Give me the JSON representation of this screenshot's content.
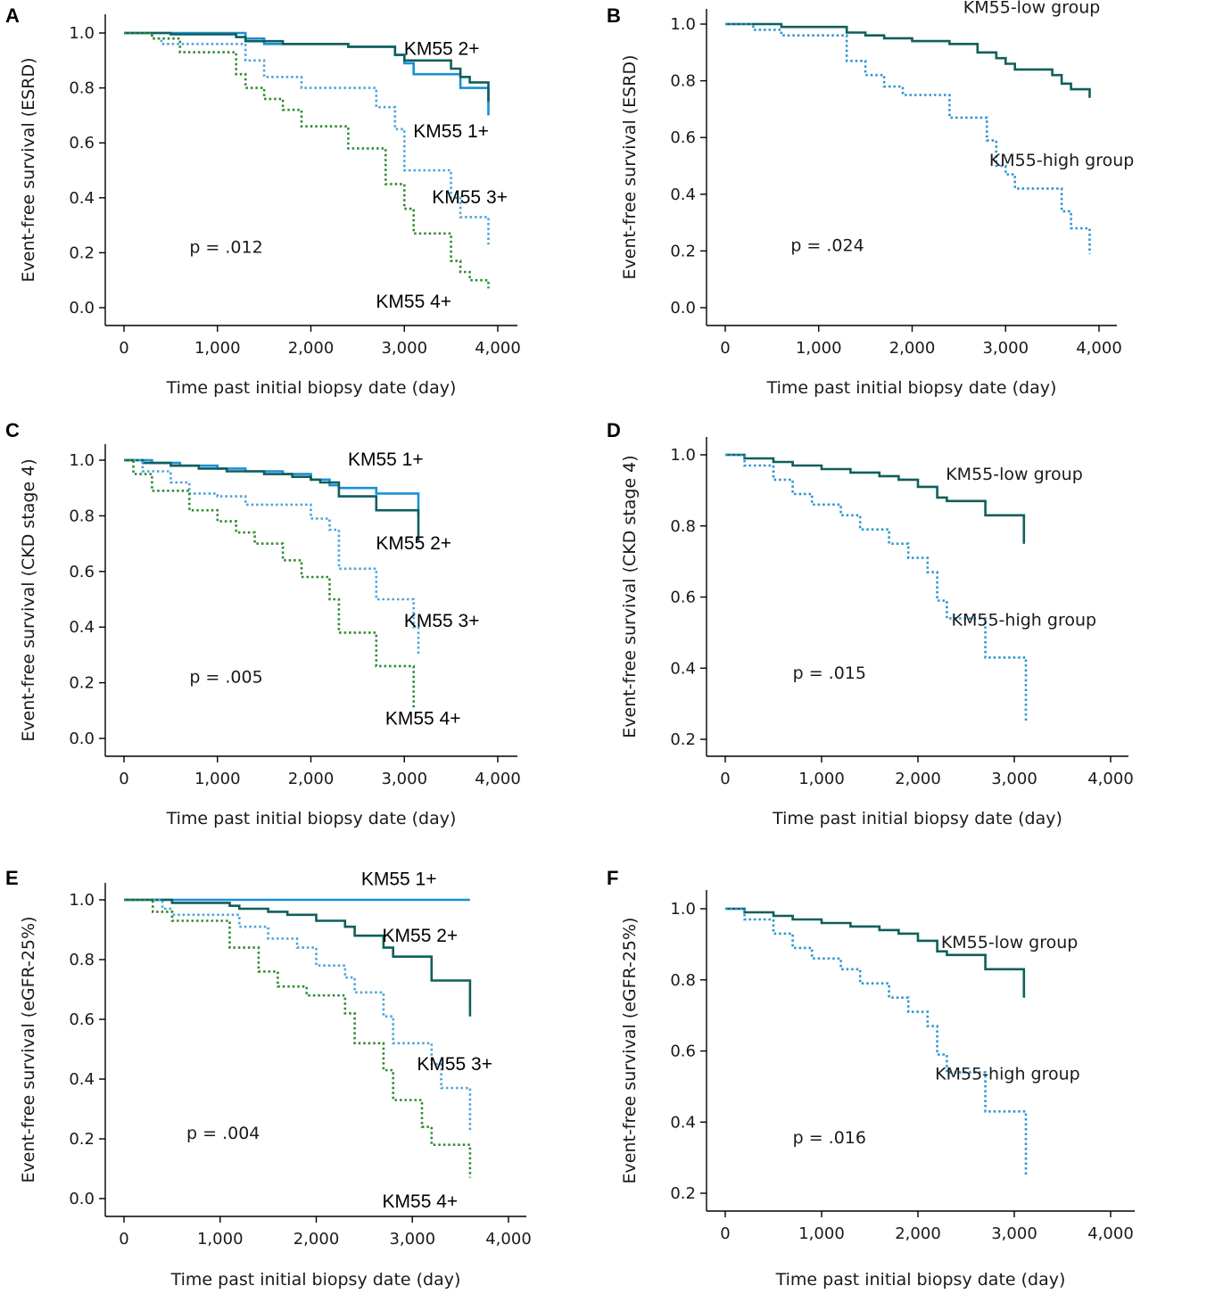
{
  "colors": {
    "KM55 1+": "#1a8fd6",
    "KM55 2+": "#0f5f5c",
    "KM55 3+": "#4aa3dc",
    "KM55 4+": "#2e8b2e",
    "KM55-low group": "#0f5f5c",
    "KM55-high group": "#2a96d2"
  },
  "chart_data": [
    {
      "panel": "A",
      "type": "line",
      "xlabel": "Time past initial biopsy date (day)",
      "ylabel": "Event-free survival (ESRD)",
      "xlim": [
        0,
        4000
      ],
      "ylim": [
        0,
        1.0
      ],
      "xticks": [
        0,
        1000,
        2000,
        3000,
        4000
      ],
      "xtick_labels": [
        "0",
        "1,000",
        "2,000",
        "3,000",
        "4,000"
      ],
      "yticks": [
        0,
        0.2,
        0.4,
        0.6,
        0.8,
        1.0
      ],
      "ytick_labels": [
        "0.0",
        "0.2",
        "0.4",
        "0.6",
        "0.8",
        "1.0"
      ],
      "annotation": "p = .012",
      "series": [
        {
          "name": "KM55 1+",
          "label": "KM55 1+",
          "dashed": false,
          "x": [
            0,
            1200,
            1300,
            1500,
            2400,
            2900,
            3000,
            3100,
            3400,
            3600,
            3700,
            3900,
            3900
          ],
          "y": [
            1.0,
            1.0,
            0.98,
            0.96,
            0.95,
            0.92,
            0.89,
            0.85,
            0.85,
            0.8,
            0.8,
            0.8,
            0.7
          ]
        },
        {
          "name": "KM55 2+",
          "label": "KM55 2+",
          "dashed": false,
          "x": [
            0,
            500,
            1200,
            1300,
            1700,
            2400,
            2900,
            3000,
            3500,
            3600,
            3700,
            3900,
            3900
          ],
          "y": [
            1.0,
            0.995,
            0.985,
            0.97,
            0.96,
            0.95,
            0.92,
            0.9,
            0.87,
            0.84,
            0.82,
            0.82,
            0.75
          ]
        },
        {
          "name": "KM55 3+",
          "label": "KM55 3+",
          "dashed": true,
          "x": [
            0,
            300,
            400,
            1200,
            1300,
            1500,
            1900,
            2400,
            2700,
            2900,
            3000,
            3300,
            3500,
            3600,
            3700,
            3900,
            3900
          ],
          "y": [
            1.0,
            0.98,
            0.96,
            0.96,
            0.9,
            0.84,
            0.8,
            0.8,
            0.73,
            0.65,
            0.5,
            0.5,
            0.4,
            0.33,
            0.33,
            0.33,
            0.23
          ]
        },
        {
          "name": "KM55 4+",
          "label": "KM55 4+",
          "dashed": true,
          "x": [
            0,
            300,
            600,
            1200,
            1300,
            1500,
            1700,
            1900,
            2400,
            2800,
            3000,
            3100,
            3500,
            3600,
            3700,
            3900,
            3900
          ],
          "y": [
            1.0,
            0.98,
            0.93,
            0.85,
            0.8,
            0.76,
            0.72,
            0.66,
            0.58,
            0.45,
            0.36,
            0.27,
            0.17,
            0.13,
            0.1,
            0.1,
            0.07
          ]
        }
      ],
      "labels": [
        {
          "series": "KM55 2+",
          "at": [
            3400,
            0.92
          ]
        },
        {
          "series": "KM55 1+",
          "at": [
            3500,
            0.62
          ]
        },
        {
          "series": "KM55 3+",
          "at": [
            3700,
            0.38
          ]
        },
        {
          "series": "KM55 4+",
          "at": [
            3100,
            0.0
          ]
        }
      ],
      "p_at": [
        700,
        0.2
      ]
    },
    {
      "panel": "B",
      "type": "line",
      "xlabel": "Time past initial biopsy date (day)",
      "ylabel": "Event-free survival (ESRD)",
      "xlim": [
        0,
        4000
      ],
      "ylim": [
        0,
        1.0
      ],
      "xticks": [
        0,
        1000,
        2000,
        3000,
        4000
      ],
      "xtick_labels": [
        "0",
        "1,000",
        "2,000",
        "3,000",
        "4,000"
      ],
      "yticks": [
        0,
        0.2,
        0.4,
        0.6,
        0.8,
        1.0
      ],
      "ytick_labels": [
        "0.0",
        "0.2",
        "0.4",
        "0.6",
        "0.8",
        "1.0"
      ],
      "annotation": "p = .024",
      "series": [
        {
          "name": "KM55-low group",
          "label": "KM55-low group",
          "dashed": false,
          "x": [
            0,
            600,
            1200,
            1300,
            1500,
            1700,
            2000,
            2400,
            2700,
            2900,
            3000,
            3100,
            3300,
            3500,
            3600,
            3700,
            3900,
            3900
          ],
          "y": [
            1.0,
            0.99,
            0.99,
            0.97,
            0.96,
            0.95,
            0.94,
            0.93,
            0.9,
            0.88,
            0.86,
            0.84,
            0.84,
            0.82,
            0.79,
            0.77,
            0.77,
            0.74
          ]
        },
        {
          "name": "KM55-high group",
          "label": "KM55-high group",
          "dashed": true,
          "x": [
            0,
            300,
            600,
            1200,
            1300,
            1500,
            1700,
            1900,
            2400,
            2800,
            2900,
            3000,
            3100,
            3500,
            3600,
            3700,
            3900,
            3900
          ],
          "y": [
            1.0,
            0.98,
            0.96,
            0.96,
            0.87,
            0.82,
            0.78,
            0.75,
            0.67,
            0.59,
            0.5,
            0.47,
            0.42,
            0.42,
            0.34,
            0.28,
            0.28,
            0.19
          ]
        }
      ],
      "labels": [
        {
          "series": "KM55-low group",
          "at": [
            3280,
            1.04
          ]
        },
        {
          "series": "KM55-high group",
          "at": [
            3600,
            0.5
          ]
        }
      ],
      "p_at": [
        700,
        0.2
      ]
    },
    {
      "panel": "C",
      "type": "line",
      "xlabel": "Time past initial biopsy date (day)",
      "ylabel": "Event-free survival (CKD stage 4)",
      "xlim": [
        0,
        4000
      ],
      "ylim": [
        0,
        1.0
      ],
      "xticks": [
        0,
        1000,
        2000,
        3000,
        4000
      ],
      "xtick_labels": [
        "0",
        "1,000",
        "2,000",
        "3,000",
        "4,000"
      ],
      "yticks": [
        0,
        0.2,
        0.4,
        0.6,
        0.8,
        1.0
      ],
      "ytick_labels": [
        "0.0",
        "0.2",
        "0.4",
        "0.6",
        "0.8",
        "1.0"
      ],
      "annotation": "p = .005",
      "series": [
        {
          "name": "KM55 1+",
          "label": "KM55 1+",
          "dashed": false,
          "x": [
            0,
            300,
            600,
            1000,
            1300,
            1700,
            2000,
            2200,
            2300,
            2700,
            3100,
            3150,
            3150
          ],
          "y": [
            1.0,
            0.99,
            0.98,
            0.97,
            0.96,
            0.95,
            0.93,
            0.91,
            0.9,
            0.88,
            0.88,
            0.88,
            0.8
          ]
        },
        {
          "name": "KM55 2+",
          "label": "KM55 2+",
          "dashed": false,
          "x": [
            0,
            200,
            500,
            800,
            1100,
            1500,
            1800,
            2000,
            2100,
            2300,
            2700,
            3100,
            3150,
            3150
          ],
          "y": [
            1.0,
            0.99,
            0.98,
            0.97,
            0.96,
            0.95,
            0.94,
            0.93,
            0.92,
            0.87,
            0.82,
            0.82,
            0.82,
            0.71
          ]
        },
        {
          "name": "KM55 3+",
          "label": "KM55 3+",
          "dashed": true,
          "x": [
            0,
            200,
            500,
            700,
            1000,
            1300,
            2000,
            2200,
            2300,
            2700,
            3000,
            3100,
            3150,
            3150
          ],
          "y": [
            1.0,
            0.96,
            0.92,
            0.88,
            0.87,
            0.84,
            0.79,
            0.75,
            0.61,
            0.5,
            0.5,
            0.4,
            0.32,
            0.3
          ]
        },
        {
          "name": "KM55 4+",
          "label": "KM55 4+",
          "dashed": true,
          "x": [
            0,
            100,
            300,
            700,
            1000,
            1200,
            1400,
            1700,
            1900,
            2200,
            2300,
            2700,
            3000,
            3100,
            3100
          ],
          "y": [
            1.0,
            0.95,
            0.89,
            0.82,
            0.78,
            0.74,
            0.7,
            0.64,
            0.58,
            0.5,
            0.38,
            0.26,
            0.26,
            0.2,
            0.11
          ]
        }
      ],
      "labels": [
        {
          "series": "KM55 1+",
          "at": [
            2800,
            0.98
          ]
        },
        {
          "series": "KM55 2+",
          "at": [
            3100,
            0.68
          ]
        },
        {
          "series": "KM55 3+",
          "at": [
            3400,
            0.4
          ]
        },
        {
          "series": "KM55 4+",
          "at": [
            3200,
            0.05
          ]
        }
      ],
      "p_at": [
        700,
        0.2
      ]
    },
    {
      "panel": "D",
      "type": "line",
      "xlabel": "Time past initial biopsy date (day)",
      "ylabel": "Event-free survival (CKD stage 4)",
      "xlim": [
        0,
        4000
      ],
      "ylim": [
        0.2,
        1.0
      ],
      "xticks": [
        0,
        1000,
        2000,
        3000,
        4000
      ],
      "xtick_labels": [
        "0",
        "1,000",
        "2,000",
        "3,000",
        "4,000"
      ],
      "yticks": [
        0.2,
        0.4,
        0.6,
        0.8,
        1.0
      ],
      "ytick_labels": [
        "0.2",
        "0.4",
        "0.6",
        "0.8",
        "1.0"
      ],
      "annotation": "p = .015",
      "series": [
        {
          "name": "KM55-low group",
          "label": "KM55-low group",
          "dashed": false,
          "x": [
            0,
            200,
            500,
            700,
            1000,
            1300,
            1600,
            1800,
            2000,
            2200,
            2300,
            2700,
            3100,
            3100
          ],
          "y": [
            1.0,
            0.99,
            0.98,
            0.97,
            0.96,
            0.95,
            0.94,
            0.93,
            0.91,
            0.88,
            0.87,
            0.83,
            0.8,
            0.75
          ]
        },
        {
          "name": "KM55-high group",
          "label": "KM55-high group",
          "dashed": true,
          "x": [
            0,
            200,
            500,
            700,
            900,
            1200,
            1400,
            1700,
            1900,
            2100,
            2200,
            2300,
            2700,
            3100,
            3120,
            3120
          ],
          "y": [
            1.0,
            0.97,
            0.93,
            0.89,
            0.86,
            0.83,
            0.79,
            0.75,
            0.71,
            0.67,
            0.59,
            0.54,
            0.43,
            0.43,
            0.32,
            0.25
          ]
        }
      ],
      "labels": [
        {
          "series": "KM55-low group",
          "at": [
            3000,
            0.93
          ]
        },
        {
          "series": "KM55-high group",
          "at": [
            3100,
            0.52
          ]
        }
      ],
      "p_at": [
        700,
        0.37
      ]
    },
    {
      "panel": "E",
      "type": "line",
      "xlabel": "Time past initial biopsy date (day)",
      "ylabel": "Event-free survival (eGFR-25%)",
      "xlim": [
        0,
        4000
      ],
      "ylim": [
        0,
        1.0
      ],
      "xticks": [
        0,
        1000,
        2000,
        3000,
        4000
      ],
      "xtick_labels": [
        "0",
        "1,000",
        "2,000",
        "3,000",
        "4,000"
      ],
      "yticks": [
        0,
        0.2,
        0.4,
        0.6,
        0.8,
        1.0
      ],
      "ytick_labels": [
        "0.0",
        "0.2",
        "0.4",
        "0.6",
        "0.8",
        "1.0"
      ],
      "annotation": "p = .004",
      "series": [
        {
          "name": "KM55 1+",
          "label": "KM55 1+",
          "dashed": false,
          "x": [
            0,
            3600
          ],
          "y": [
            1.0,
            1.0
          ]
        },
        {
          "name": "KM55 2+",
          "label": "KM55 2+",
          "dashed": false,
          "x": [
            0,
            500,
            1100,
            1200,
            1500,
            1700,
            2000,
            2300,
            2400,
            2700,
            2800,
            3200,
            3600,
            3600
          ],
          "y": [
            1.0,
            0.99,
            0.98,
            0.97,
            0.96,
            0.95,
            0.93,
            0.91,
            0.88,
            0.84,
            0.81,
            0.73,
            0.67,
            0.61
          ]
        },
        {
          "name": "KM55 3+",
          "label": "KM55 3+",
          "dashed": true,
          "x": [
            0,
            400,
            500,
            1200,
            1500,
            1800,
            2000,
            2300,
            2400,
            2700,
            2800,
            3200,
            3300,
            3600,
            3600
          ],
          "y": [
            1.0,
            0.97,
            0.95,
            0.91,
            0.87,
            0.84,
            0.78,
            0.74,
            0.69,
            0.61,
            0.52,
            0.45,
            0.37,
            0.37,
            0.22
          ]
        },
        {
          "name": "KM55 4+",
          "label": "KM55 4+",
          "dashed": true,
          "x": [
            0,
            300,
            500,
            1100,
            1400,
            1600,
            1900,
            2300,
            2400,
            2700,
            2800,
            3100,
            3200,
            3600,
            3600
          ],
          "y": [
            1.0,
            0.96,
            0.93,
            0.84,
            0.76,
            0.71,
            0.68,
            0.62,
            0.52,
            0.43,
            0.33,
            0.24,
            0.18,
            0.17,
            0.07
          ]
        }
      ],
      "labels": [
        {
          "series": "KM55 1+",
          "at": [
            2860,
            1.05
          ]
        },
        {
          "series": "KM55 2+",
          "at": [
            3080,
            0.86
          ]
        },
        {
          "series": "KM55 3+",
          "at": [
            3440,
            0.43
          ]
        },
        {
          "series": "KM55 4+",
          "at": [
            3080,
            -0.03
          ]
        }
      ],
      "p_at": [
        650,
        0.2
      ]
    },
    {
      "panel": "F",
      "type": "line",
      "xlabel": "Time past initial biopsy date (day)",
      "ylabel": "Event-free survival (eGFR-25%)",
      "xlim": [
        0,
        4000
      ],
      "ylim": [
        0.2,
        1.0
      ],
      "xticks": [
        0,
        1000,
        2000,
        3000,
        4000
      ],
      "xtick_labels": [
        "0",
        "1,000",
        "2,000",
        "3,000",
        "4,000"
      ],
      "yticks": [
        0.2,
        0.4,
        0.6,
        0.8,
        1.0
      ],
      "ytick_labels": [
        "0.2",
        "0.4",
        "0.6",
        "0.8",
        "1.0"
      ],
      "annotation": "p = .016",
      "series": [
        {
          "name": "KM55-low group",
          "label": "KM55-low group",
          "dashed": false,
          "x": [
            0,
            200,
            500,
            700,
            1000,
            1300,
            1600,
            1800,
            2000,
            2200,
            2300,
            2700,
            3100,
            3100
          ],
          "y": [
            1.0,
            0.99,
            0.98,
            0.97,
            0.96,
            0.95,
            0.94,
            0.93,
            0.91,
            0.88,
            0.87,
            0.83,
            0.8,
            0.75
          ]
        },
        {
          "name": "KM55-high group",
          "label": "KM55-high group",
          "dashed": true,
          "x": [
            0,
            200,
            500,
            700,
            900,
            1200,
            1400,
            1700,
            1900,
            2100,
            2200,
            2300,
            2700,
            3100,
            3120,
            3120
          ],
          "y": [
            1.0,
            0.97,
            0.93,
            0.89,
            0.86,
            0.83,
            0.79,
            0.75,
            0.71,
            0.67,
            0.59,
            0.54,
            0.43,
            0.43,
            0.32,
            0.25
          ]
        }
      ],
      "labels": [
        {
          "series": "KM55-low group",
          "at": [
            2950,
            0.89
          ]
        },
        {
          "series": "KM55-high group",
          "at": [
            2930,
            0.52
          ]
        }
      ],
      "p_at": [
        700,
        0.34
      ]
    }
  ]
}
